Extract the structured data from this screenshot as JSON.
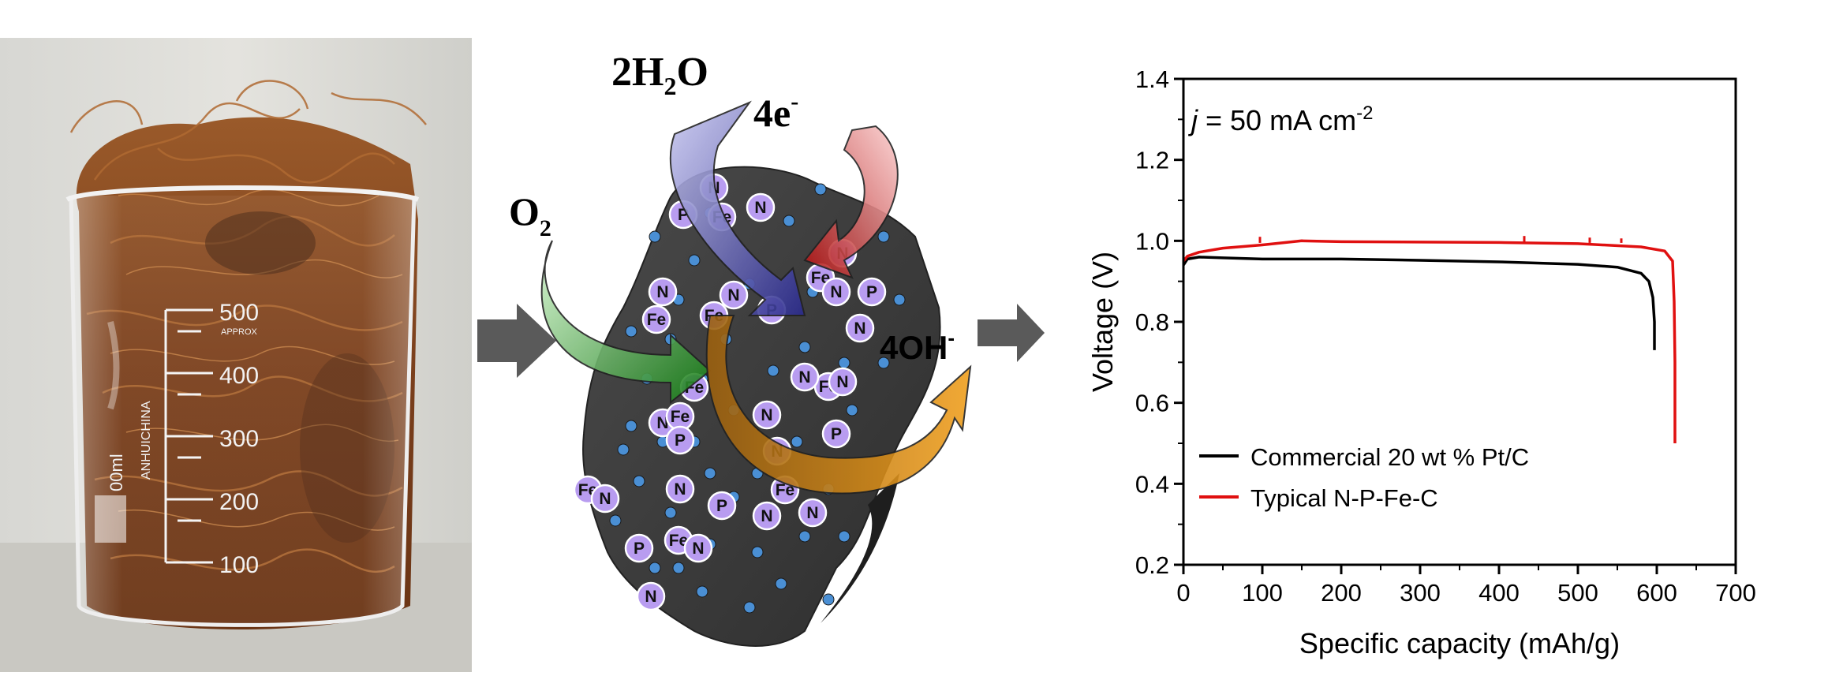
{
  "photo": {
    "beaker_marks": [
      "500",
      "APPROX",
      "400",
      "300",
      "200",
      "100"
    ],
    "beaker_side_text": "ANHUICHINA",
    "beaker_volume_label": "00ml"
  },
  "scheme": {
    "reactants": {
      "water": {
        "coef": "2H",
        "sub": "2",
        "tail": "O"
      },
      "oxygen": {
        "main": "O",
        "sub": "2"
      },
      "electrons": {
        "main": "4e",
        "sup": "-"
      }
    },
    "product": {
      "main": "4OH",
      "sup": "-"
    },
    "atom_types": [
      "N",
      "P",
      "Fe"
    ],
    "colors": {
      "particle": "#3d3d3d",
      "dot": "#4a8fd4",
      "atom_fill": "#b89cf0",
      "arrow_grey": "#5a5a5a",
      "water_arrow": "#3a3a9c",
      "electron_arrow": "#c01818",
      "oxygen_arrow": "#1f8a1f",
      "hydroxide_arrow": "#e08a10"
    }
  },
  "chart_data": {
    "type": "line",
    "title": "",
    "annotation": {
      "prefix": "j",
      "text": " = 50 mA cm",
      "sup": "-2"
    },
    "xlabel": "Specific capacity (mAh/g)",
    "ylabel": "Voltage (V)",
    "xlim": [
      0,
      700
    ],
    "ylim": [
      0.2,
      1.4
    ],
    "xticks": [
      0,
      100,
      200,
      300,
      400,
      500,
      600,
      700
    ],
    "yticks": [
      0.2,
      0.4,
      0.6,
      0.8,
      1.0,
      1.2,
      1.4
    ],
    "ytick_labels": [
      "0.2",
      "0.4",
      "0.6",
      "0.8",
      "1.0",
      "1.2",
      "1.4"
    ],
    "legend_position": "bottom-left",
    "series": [
      {
        "name": "Commercial 20 wt % Pt/C",
        "color": "#000000",
        "x": [
          0,
          5,
          20,
          50,
          100,
          200,
          300,
          400,
          500,
          550,
          580,
          590,
          595,
          597,
          597
        ],
        "y": [
          0.94,
          0.955,
          0.96,
          0.958,
          0.955,
          0.955,
          0.952,
          0.948,
          0.942,
          0.935,
          0.92,
          0.9,
          0.86,
          0.8,
          0.73
        ]
      },
      {
        "name": "Typical N-P-Fe-C",
        "color": "#e01010",
        "x": [
          0,
          5,
          20,
          50,
          100,
          150,
          200,
          300,
          400,
          500,
          580,
          610,
          620,
          622,
          623,
          623
        ],
        "y": [
          0.95,
          0.962,
          0.972,
          0.982,
          0.99,
          1.0,
          0.998,
          0.997,
          0.996,
          0.993,
          0.985,
          0.975,
          0.95,
          0.85,
          0.7,
          0.5
        ]
      }
    ]
  }
}
